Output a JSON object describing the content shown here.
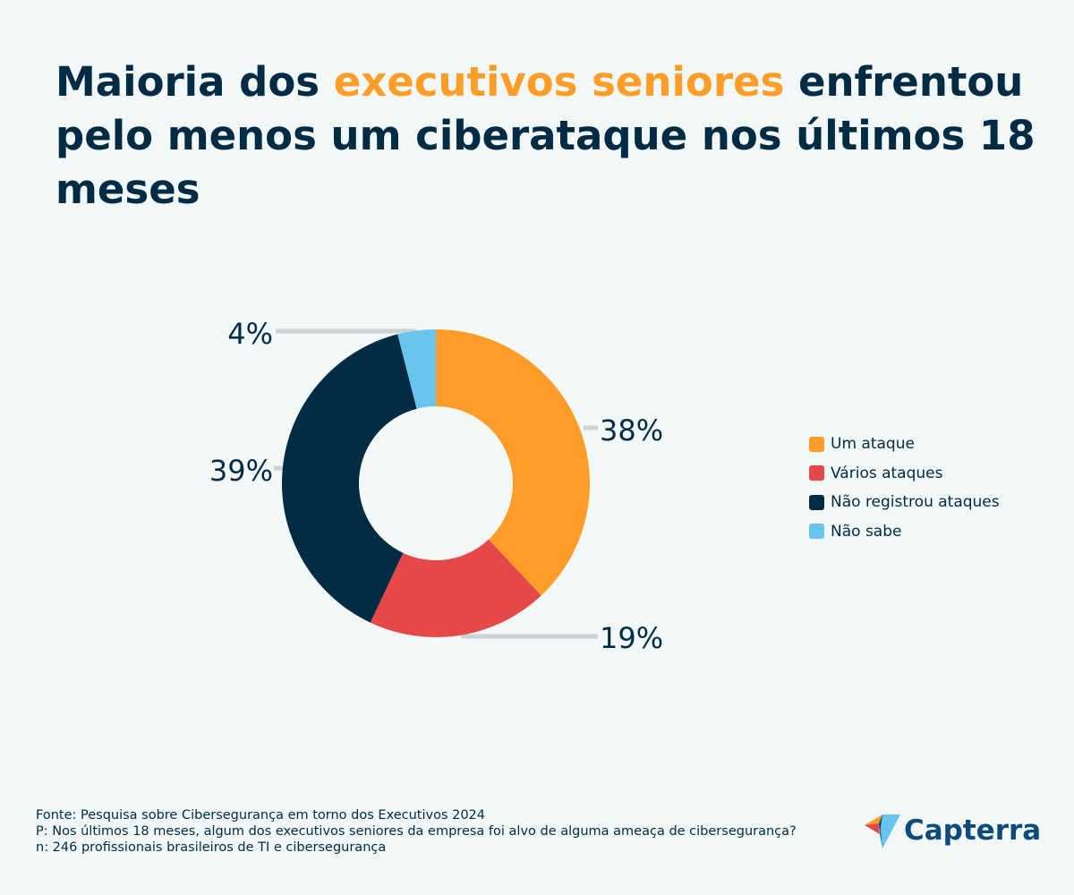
{
  "title": {
    "pre": "Maioria dos ",
    "highlight": "executivos seniores",
    "post": " enfrentou pelo menos um ciberataque nos últimos 18 meses"
  },
  "chart_data": {
    "type": "pie",
    "donut": true,
    "categories": [
      "Um ataque",
      "Vários ataques",
      "Não registrou ataques",
      "Não sabe"
    ],
    "values": [
      38,
      19,
      39,
      4
    ],
    "data_labels": [
      "38%",
      "19%",
      "39%",
      "4%"
    ],
    "colors": [
      "#ff9d28",
      "#e44848",
      "#002b45",
      "#68c5ed"
    ],
    "legend_position": "right"
  },
  "footer": {
    "source": "Fonte: Pesquisa sobre Cibersegurança em torno dos Executivos 2024",
    "question": "P: Nos últimos 18 meses, algum dos executivos seniores da empresa foi alvo de alguma ameaça de cibersegurança?",
    "sample": "n: 246 profissionais brasileiros de TI e cibersegurança"
  },
  "logo": {
    "text": "Capterra"
  }
}
